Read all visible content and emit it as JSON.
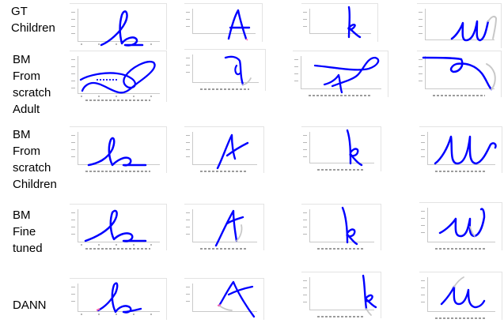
{
  "rows": [
    {
      "label_lines": [
        "GT",
        "Children"
      ]
    },
    {
      "label_lines": [
        "BM",
        "From",
        "scratch",
        "Adult"
      ]
    },
    {
      "label_lines": [
        "BM",
        "From",
        "scratch",
        "Children"
      ]
    },
    {
      "label_lines": [
        "BM",
        "Fine",
        "tuned"
      ]
    },
    {
      "label_lines": [
        "DANN"
      ]
    }
  ],
  "columns": [
    {
      "letter": "b"
    },
    {
      "letter": "A"
    },
    {
      "letter": "k"
    },
    {
      "letter": "u"
    }
  ],
  "colors": {
    "stroke": "#0000ff",
    "missing": "#c8c8c8",
    "accent": "#ff66aa",
    "axis": "#c9c9c9"
  }
}
